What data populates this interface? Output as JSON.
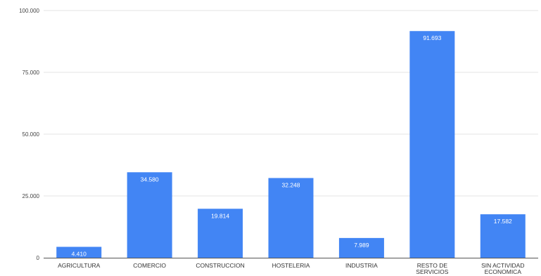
{
  "chart_data": {
    "type": "bar",
    "categories": [
      [
        "AGRICULTURA"
      ],
      [
        "COMERCIO"
      ],
      [
        "CONSTRUCCION"
      ],
      [
        "HOSTELERIA"
      ],
      [
        "INDUSTRIA"
      ],
      [
        "RESTO DE",
        "SERVICIOS"
      ],
      [
        "SIN ACTIVIDAD",
        "ECONOMICA"
      ]
    ],
    "values": [
      4410,
      34580,
      19814,
      32248,
      7989,
      91693,
      17582
    ],
    "value_labels": [
      "4.410",
      "34.580",
      "19.814",
      "32.248",
      "7.989",
      "91.693",
      "17.582"
    ],
    "yticks": [
      0,
      25000,
      50000,
      75000,
      100000
    ],
    "ytick_labels": [
      "0",
      "25.000",
      "50.000",
      "75.000",
      "100.000"
    ],
    "ylim": [
      0,
      100000
    ],
    "grid": true,
    "legend": "none",
    "title": "",
    "xlabel": "",
    "ylabel": "",
    "bar_color": "#4285f4",
    "data_label_color": "#ffffff"
  }
}
